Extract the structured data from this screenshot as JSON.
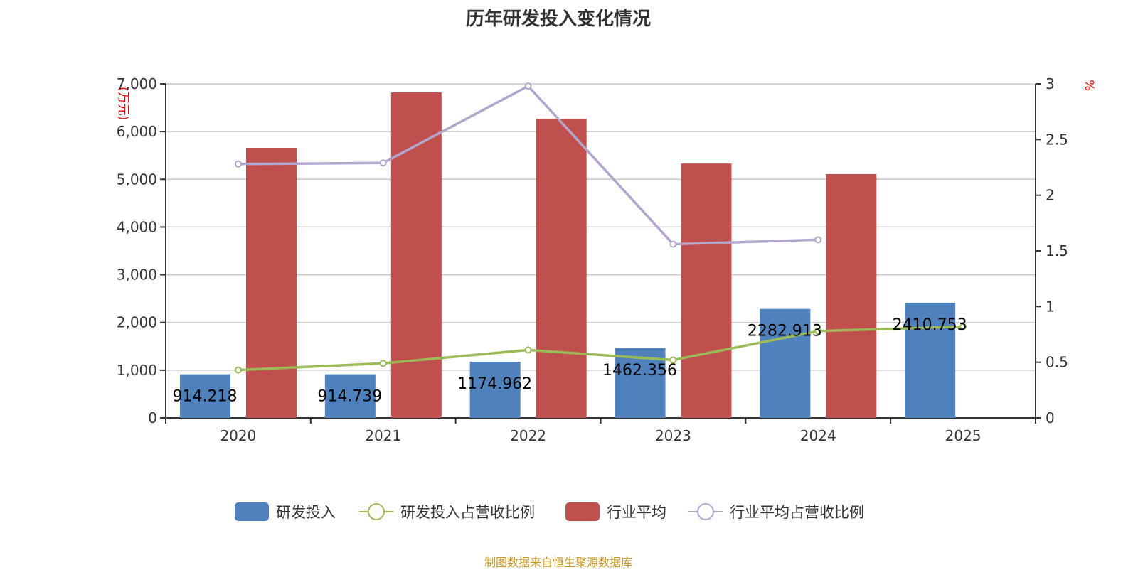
{
  "chart_data": {
    "type": "bar",
    "title": "历年研发投入变化情况",
    "categories": [
      "2020",
      "2021",
      "2022",
      "2023",
      "2024",
      "2025"
    ],
    "y_left": {
      "label": "(万元)",
      "ylim": [
        0,
        7000
      ],
      "ticks": [
        "0",
        "1,000",
        "2,000",
        "3,000",
        "4,000",
        "5,000",
        "6,000",
        "7,000"
      ]
    },
    "y_right": {
      "label": "%",
      "ylim": [
        0,
        3
      ],
      "ticks": [
        "0",
        "0.5",
        "1",
        "1.5",
        "2",
        "2.5",
        "3"
      ]
    },
    "grid": true,
    "legend_placement": "bottom",
    "series": [
      {
        "name": "研发投入",
        "type": "bar",
        "axis": "left",
        "color": "#4f81bd",
        "values": [
          914.218,
          914.739,
          1174.962,
          1462.356,
          2282.913,
          2410.753
        ],
        "labels": [
          "914.218",
          "914.739",
          "1174.962",
          "1462.356",
          "2282.913",
          "2410.753"
        ]
      },
      {
        "name": "研发投入占营收比例",
        "type": "line",
        "axis": "right",
        "color": "#9bbb59",
        "values": [
          0.43,
          0.49,
          0.61,
          0.52,
          0.78,
          0.82
        ]
      },
      {
        "name": "行业平均",
        "type": "bar",
        "axis": "left",
        "color": "#c0504d",
        "values": [
          5660,
          6820,
          6270,
          5330,
          5110,
          null
        ]
      },
      {
        "name": "行业平均占营收比例",
        "type": "line",
        "axis": "right",
        "color": "#b3a6cc",
        "values": [
          2.28,
          2.29,
          2.98,
          1.56,
          1.6,
          null
        ]
      }
    ]
  },
  "source": "制图数据来自恒生聚源数据库"
}
